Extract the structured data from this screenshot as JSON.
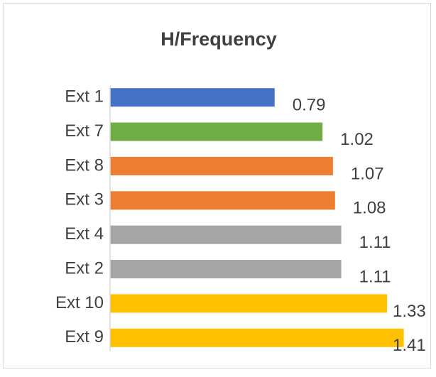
{
  "chart_data": {
    "type": "bar",
    "orientation": "horizontal",
    "title": "H/Frequency",
    "categories": [
      "Ext 1",
      "Ext 7",
      "Ext 8",
      "Ext 3",
      "Ext 4",
      "Ext 2",
      "Ext 10",
      "Ext 9"
    ],
    "values": [
      0.79,
      1.02,
      1.07,
      1.08,
      1.11,
      1.11,
      1.33,
      1.41
    ],
    "colors": [
      "#4472c4",
      "#70ad47",
      "#ed7d31",
      "#ed7d31",
      "#a5a5a5",
      "#a5a5a5",
      "#ffc000",
      "#ffc000"
    ],
    "xlim": [
      0,
      1.5
    ],
    "grid": false
  }
}
